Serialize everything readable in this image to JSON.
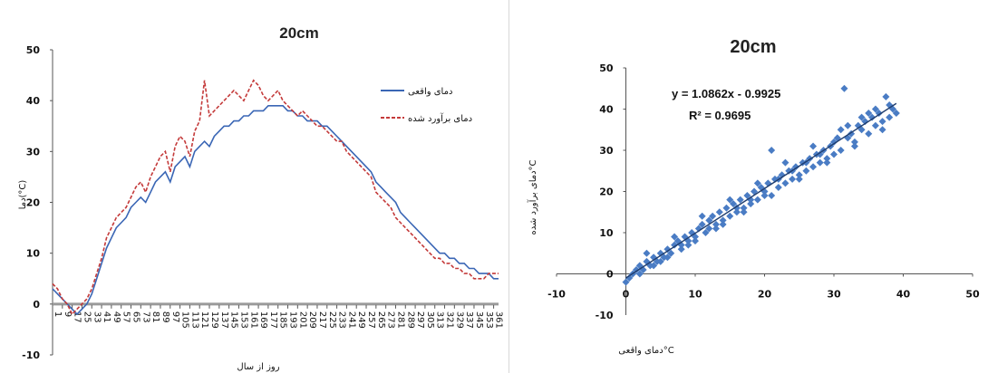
{
  "chart_data": [
    {
      "type": "line",
      "title": "20cm",
      "xlabel": "روز از سال",
      "ylabel": "دما(°C)",
      "ylim": [
        -10,
        50
      ],
      "yticks": [
        -10,
        0,
        10,
        20,
        30,
        40,
        50
      ],
      "grid": false,
      "legend": "right",
      "series_colors": [
        "#3a66b5",
        "#c43a3a"
      ],
      "x": [
        1,
        5,
        9,
        13,
        17,
        21,
        25,
        29,
        33,
        37,
        41,
        45,
        49,
        53,
        57,
        61,
        65,
        69,
        73,
        77,
        81,
        85,
        89,
        93,
        97,
        101,
        105,
        109,
        113,
        117,
        121,
        125,
        129,
        133,
        137,
        141,
        145,
        149,
        153,
        157,
        161,
        165,
        169,
        173,
        177,
        181,
        185,
        189,
        193,
        197,
        201,
        205,
        209,
        213,
        217,
        221,
        225,
        229,
        233,
        237,
        241,
        245,
        249,
        253,
        257,
        261,
        265,
        269,
        273,
        277,
        281,
        285,
        289,
        293,
        297,
        301,
        305,
        309,
        313,
        317,
        321,
        325,
        329,
        333,
        337,
        341,
        345,
        349,
        353,
        357,
        361,
        365
      ],
      "series": [
        {
          "name": "دمای واقعی",
          "values": [
            3,
            2,
            1,
            0,
            -1,
            -2,
            -1,
            0,
            2,
            5,
            8,
            11,
            13,
            15,
            16,
            17,
            19,
            20,
            21,
            20,
            22,
            24,
            25,
            26,
            24,
            27,
            28,
            29,
            27,
            30,
            31,
            32,
            31,
            33,
            34,
            35,
            35,
            36,
            36,
            37,
            37,
            38,
            38,
            38,
            39,
            39,
            39,
            39,
            38,
            38,
            37,
            37,
            36,
            36,
            36,
            35,
            35,
            34,
            33,
            32,
            31,
            30,
            29,
            28,
            27,
            26,
            24,
            23,
            22,
            21,
            20,
            18,
            17,
            16,
            15,
            14,
            13,
            12,
            11,
            10,
            10,
            9,
            9,
            8,
            8,
            7,
            7,
            6,
            6,
            6,
            5,
            5
          ]
        },
        {
          "name": "دمای برآورد شده",
          "values": [
            4,
            3,
            1,
            0,
            -2,
            -1,
            0,
            1,
            3,
            6,
            9,
            13,
            15,
            17,
            18,
            19,
            21,
            23,
            24,
            22,
            25,
            27,
            29,
            30,
            26,
            31,
            33,
            32,
            29,
            34,
            36,
            44,
            37,
            38,
            39,
            40,
            41,
            42,
            41,
            40,
            42,
            44,
            43,
            41,
            40,
            41,
            42,
            40,
            39,
            38,
            37,
            38,
            37,
            36,
            35,
            35,
            34,
            33,
            32,
            32,
            30,
            29,
            28,
            27,
            26,
            25,
            22,
            21,
            20,
            19,
            17,
            16,
            15,
            14,
            13,
            12,
            11,
            10,
            9,
            9,
            8,
            8,
            7,
            7,
            6,
            6,
            5,
            5,
            5,
            6,
            6,
            6
          ]
        }
      ]
    },
    {
      "type": "scatter",
      "title": "20cm",
      "xlabel": "دمای واقعی°C",
      "ylabel": "دمای برآورد شده°C",
      "xlim": [
        -10,
        50
      ],
      "ylim": [
        -10,
        50
      ],
      "xticks": [
        -10,
        0,
        10,
        20,
        30,
        40,
        50
      ],
      "yticks": [
        -10,
        0,
        10,
        20,
        30,
        40,
        50
      ],
      "grid": false,
      "marker_color": "#4a7cc4",
      "trendline": {
        "slope": 1.0862,
        "intercept": -0.9925,
        "color": "#1f3d6e"
      },
      "annotations": [
        "y = 1.0862x - 0.9925",
        "R² = 0.9695"
      ],
      "points": [
        [
          0,
          -2
        ],
        [
          0.5,
          -1
        ],
        [
          1,
          0
        ],
        [
          1.5,
          1
        ],
        [
          2,
          2
        ],
        [
          2.5,
          1
        ],
        [
          3,
          3
        ],
        [
          3.5,
          2
        ],
        [
          4,
          4
        ],
        [
          4.5,
          3
        ],
        [
          5,
          5
        ],
        [
          5.5,
          4
        ],
        [
          6,
          6
        ],
        [
          6.5,
          5
        ],
        [
          7,
          7
        ],
        [
          7.5,
          8
        ],
        [
          8,
          6
        ],
        [
          8.5,
          9
        ],
        [
          9,
          8
        ],
        [
          9.5,
          10
        ],
        [
          10,
          9
        ],
        [
          10.5,
          11
        ],
        [
          11,
          12
        ],
        [
          11.5,
          10
        ],
        [
          12,
          13
        ],
        [
          12.5,
          14
        ],
        [
          13,
          11
        ],
        [
          13.5,
          15
        ],
        [
          14,
          13
        ],
        [
          14.5,
          16
        ],
        [
          15,
          14
        ],
        [
          15.5,
          17
        ],
        [
          16,
          15
        ],
        [
          16.5,
          18
        ],
        [
          17,
          16
        ],
        [
          17.5,
          19
        ],
        [
          18,
          17
        ],
        [
          18.5,
          20
        ],
        [
          19,
          18
        ],
        [
          19.5,
          21
        ],
        [
          20,
          19
        ],
        [
          20.5,
          22
        ],
        [
          21,
          30
        ],
        [
          21.5,
          23
        ],
        [
          22,
          21
        ],
        [
          22.5,
          24
        ],
        [
          23,
          22
        ],
        [
          23.5,
          25
        ],
        [
          24,
          23
        ],
        [
          24.5,
          26
        ],
        [
          25,
          24
        ],
        [
          25.5,
          27
        ],
        [
          26,
          25
        ],
        [
          26.5,
          28
        ],
        [
          27,
          26
        ],
        [
          27.5,
          29
        ],
        [
          28,
          27
        ],
        [
          28.5,
          30
        ],
        [
          29,
          28
        ],
        [
          29.5,
          31
        ],
        [
          30,
          29
        ],
        [
          30.5,
          33
        ],
        [
          31,
          30
        ],
        [
          31.5,
          45
        ],
        [
          32,
          33
        ],
        [
          32.5,
          34
        ],
        [
          33,
          32
        ],
        [
          33.5,
          36
        ],
        [
          34,
          35
        ],
        [
          34.5,
          37
        ],
        [
          35,
          34
        ],
        [
          35.5,
          38
        ],
        [
          36,
          36
        ],
        [
          36.5,
          39
        ],
        [
          37,
          37
        ],
        [
          37.5,
          43
        ],
        [
          38,
          38
        ],
        [
          38.5,
          40
        ],
        [
          39,
          39
        ],
        [
          2,
          0
        ],
        [
          4,
          2
        ],
        [
          6,
          4
        ],
        [
          8,
          7
        ],
        [
          10,
          8
        ],
        [
          12,
          11
        ],
        [
          14,
          12
        ],
        [
          16,
          16
        ],
        [
          18,
          18
        ],
        [
          20,
          20
        ],
        [
          22,
          23
        ],
        [
          24,
          25
        ],
        [
          26,
          27
        ],
        [
          28,
          29
        ],
        [
          30,
          32
        ],
        [
          32,
          36
        ],
        [
          34,
          38
        ],
        [
          36,
          40
        ],
        [
          38,
          41
        ],
        [
          3,
          5
        ],
        [
          7,
          9
        ],
        [
          11,
          14
        ],
        [
          15,
          18
        ],
        [
          19,
          22
        ],
        [
          23,
          27
        ],
        [
          27,
          31
        ],
        [
          31,
          35
        ],
        [
          35,
          39
        ],
        [
          5,
          3
        ],
        [
          9,
          7
        ],
        [
          13,
          12
        ],
        [
          17,
          15
        ],
        [
          21,
          19
        ],
        [
          25,
          23
        ],
        [
          29,
          27
        ],
        [
          33,
          31
        ],
        [
          37,
          35
        ]
      ]
    }
  ]
}
